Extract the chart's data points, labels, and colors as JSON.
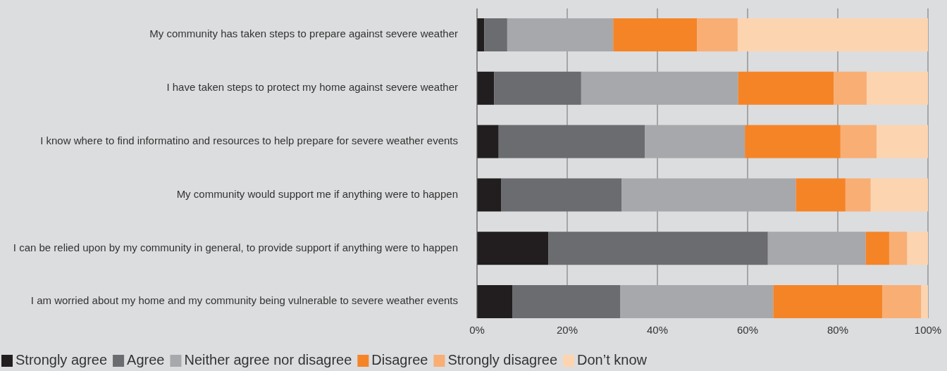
{
  "chart_data": {
    "type": "bar",
    "orientation": "horizontal",
    "stacked": true,
    "categories": [
      "My community has taken steps to prepare against severe weather",
      "I have taken steps to protect my home against severe weather",
      "I know where to find informatino and resources to help prepare for severe weather events",
      "My community would support me if anything were to happen",
      "I can be relied upon by my community in general, to provide support if anything were to happen",
      "I am worried about my home and my community being vulnerable to severe weather events"
    ],
    "series": [
      {
        "name": "Strongly agree",
        "color": "#221e1f",
        "values": [
          1.6,
          3.8,
          4.8,
          5.4,
          15.8,
          7.9
        ]
      },
      {
        "name": "Agree",
        "color": "#6b6c6f",
        "values": [
          5.1,
          19.3,
          32.4,
          26.7,
          48.7,
          23.9
        ]
      },
      {
        "name": "Neither agree nor disagree",
        "color": "#a7a8ab",
        "values": [
          23.5,
          34.8,
          22.2,
          38.6,
          21.7,
          33.9
        ]
      },
      {
        "name": "Disagree",
        "color": "#f58427",
        "values": [
          18.6,
          21.2,
          21.2,
          11.0,
          5.2,
          24.2
        ]
      },
      {
        "name": "Strongly disagree",
        "color": "#f9ae74",
        "values": [
          9.0,
          7.3,
          8.0,
          5.6,
          4.0,
          8.6
        ]
      },
      {
        "name": "Don’t know",
        "color": "#fdd4b0",
        "values": [
          42.2,
          13.6,
          11.4,
          12.7,
          4.6,
          1.5
        ]
      }
    ],
    "xlim": [
      0,
      100
    ],
    "xticks": [
      {
        "value": 0,
        "label": "0%"
      },
      {
        "value": 20,
        "label": "20%"
      },
      {
        "value": 40,
        "label": "40%"
      },
      {
        "value": 60,
        "label": "60%"
      },
      {
        "value": 80,
        "label": "80%"
      },
      {
        "value": 100,
        "label": "100%"
      }
    ],
    "grid": "x",
    "legend": "bottom"
  }
}
